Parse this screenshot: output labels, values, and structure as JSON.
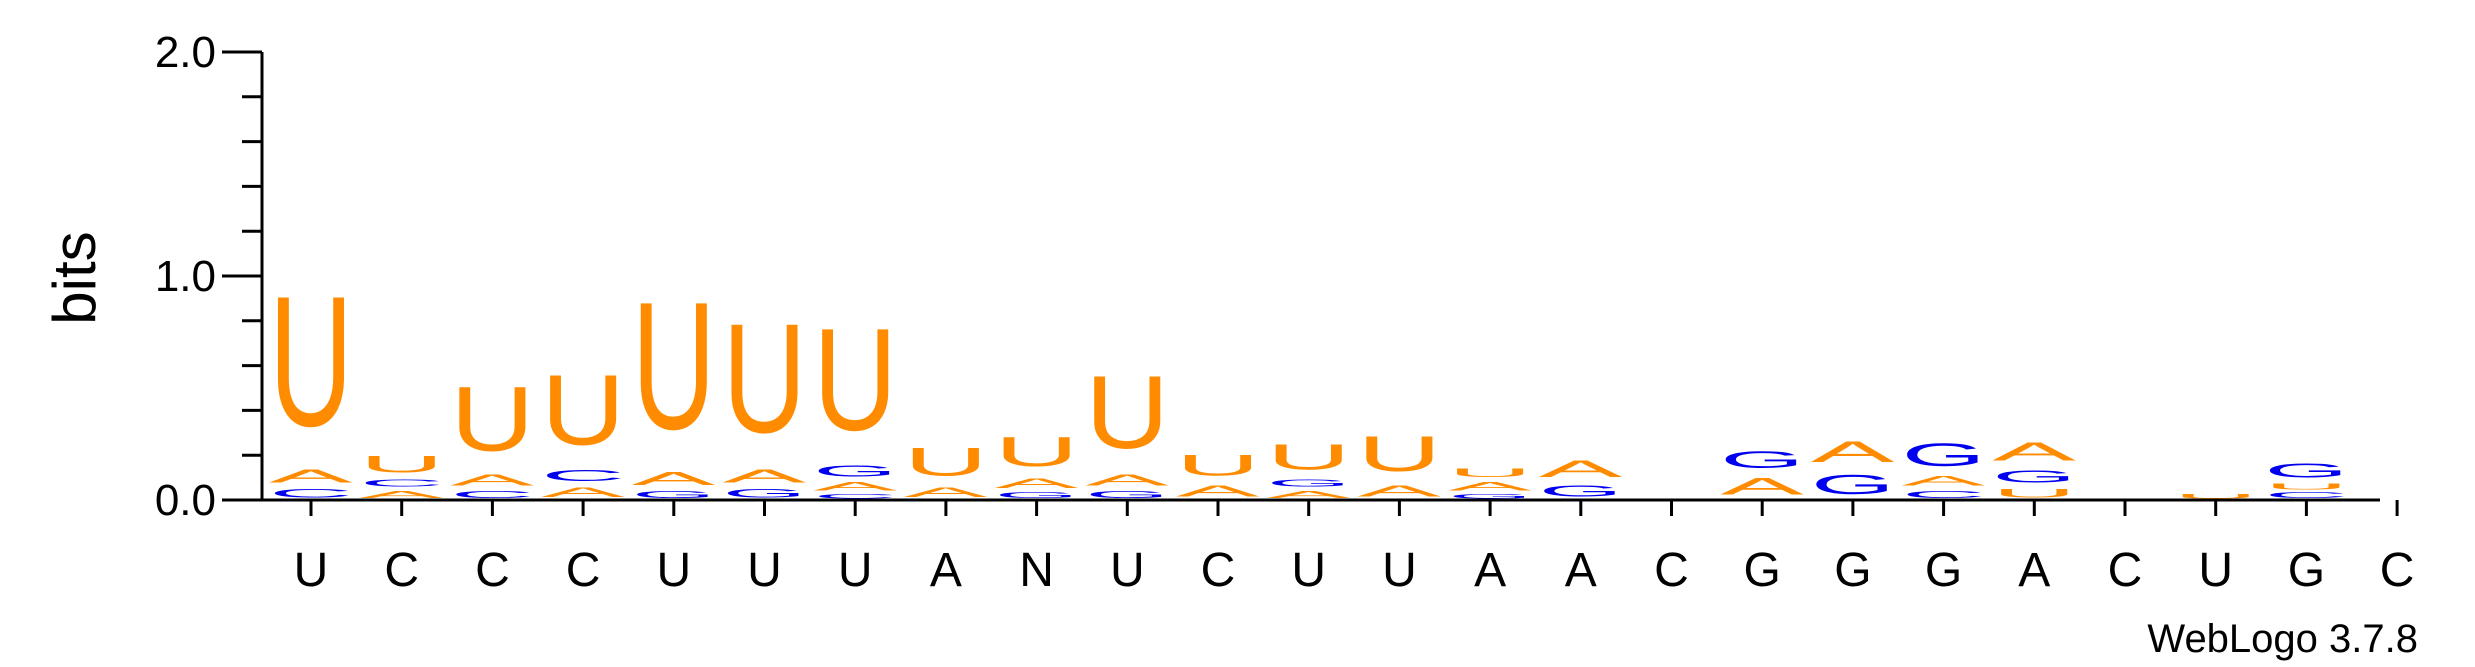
{
  "chart_data": {
    "type": "sequence-logo",
    "ylabel": "bits",
    "ylim": [
      0,
      2.0
    ],
    "yticks": [
      "0.0",
      "1.0",
      "2.0"
    ],
    "colors": {
      "U": "#ff8c00",
      "A": "#ff8c00",
      "C": "#0000ee",
      "G": "#0000ee",
      "N": "#0000ee"
    },
    "credit": "WebLogo 3.7.8",
    "positions": [
      {
        "label": "U",
        "stack": [
          [
            "C",
            0.06
          ],
          [
            "A",
            0.09
          ],
          [
            "U",
            0.93
          ]
        ]
      },
      {
        "label": "C",
        "stack": [
          [
            "A",
            0.05
          ],
          [
            "C",
            0.05
          ],
          [
            "U",
            0.12
          ]
        ]
      },
      {
        "label": "C",
        "stack": [
          [
            "C",
            0.05
          ],
          [
            "A",
            0.08
          ],
          [
            "U",
            0.46
          ]
        ]
      },
      {
        "label": "C",
        "stack": [
          [
            "A",
            0.07
          ],
          [
            "C",
            0.08
          ],
          [
            "U",
            0.5
          ]
        ]
      },
      {
        "label": "U",
        "stack": [
          [
            "G",
            0.05
          ],
          [
            "A",
            0.09
          ],
          [
            "U",
            0.91
          ]
        ]
      },
      {
        "label": "U",
        "stack": [
          [
            "G",
            0.06
          ],
          [
            "A",
            0.09
          ],
          [
            "U",
            0.78
          ]
        ]
      },
      {
        "label": "U",
        "stack": [
          [
            "C",
            0.03
          ],
          [
            "A",
            0.06
          ],
          [
            "G",
            0.08
          ],
          [
            "U",
            0.73
          ]
        ]
      },
      {
        "label": "A",
        "stack": [
          [
            "A",
            0.07
          ],
          [
            "U",
            0.2
          ]
        ]
      },
      {
        "label": "N",
        "stack": [
          [
            "G",
            0.04
          ],
          [
            "A",
            0.07
          ],
          [
            "U",
            0.21
          ]
        ]
      },
      {
        "label": "U",
        "stack": [
          [
            "G",
            0.05
          ],
          [
            "A",
            0.08
          ],
          [
            "U",
            0.52
          ]
        ]
      },
      {
        "label": "C",
        "stack": [
          [
            "A",
            0.08
          ],
          [
            "U",
            0.15
          ]
        ]
      },
      {
        "label": "U",
        "stack": [
          [
            "A",
            0.05
          ],
          [
            "G",
            0.05
          ],
          [
            "U",
            0.18
          ]
        ]
      },
      {
        "label": "U",
        "stack": [
          [
            "A",
            0.08
          ],
          [
            "U",
            0.25
          ]
        ]
      },
      {
        "label": "A",
        "stack": [
          [
            "G",
            0.03
          ],
          [
            "A",
            0.06
          ],
          [
            "U",
            0.06
          ]
        ]
      },
      {
        "label": "A",
        "stack": [
          [
            "G",
            0.08
          ],
          [
            "A",
            0.12
          ]
        ]
      },
      {
        "label": "C",
        "stack": []
      },
      {
        "label": "G",
        "stack": [
          [
            "A",
            0.12
          ],
          [
            "G",
            0.12
          ]
        ]
      },
      {
        "label": "G",
        "stack": [
          [
            "G",
            0.14
          ],
          [
            "A",
            0.15
          ]
        ]
      },
      {
        "label": "G",
        "stack": [
          [
            "C",
            0.05
          ],
          [
            "A",
            0.07
          ],
          [
            "G",
            0.16
          ]
        ]
      },
      {
        "label": "A",
        "stack": [
          [
            "U",
            0.06
          ],
          [
            "G",
            0.09
          ],
          [
            "A",
            0.13
          ]
        ]
      },
      {
        "label": "C",
        "stack": []
      },
      {
        "label": "U",
        "stack": [
          [
            "U",
            0.03
          ]
        ]
      },
      {
        "label": "G",
        "stack": [
          [
            "C",
            0.04
          ],
          [
            "U",
            0.04
          ],
          [
            "G",
            0.1
          ]
        ]
      },
      {
        "label": "C",
        "stack": []
      }
    ]
  }
}
